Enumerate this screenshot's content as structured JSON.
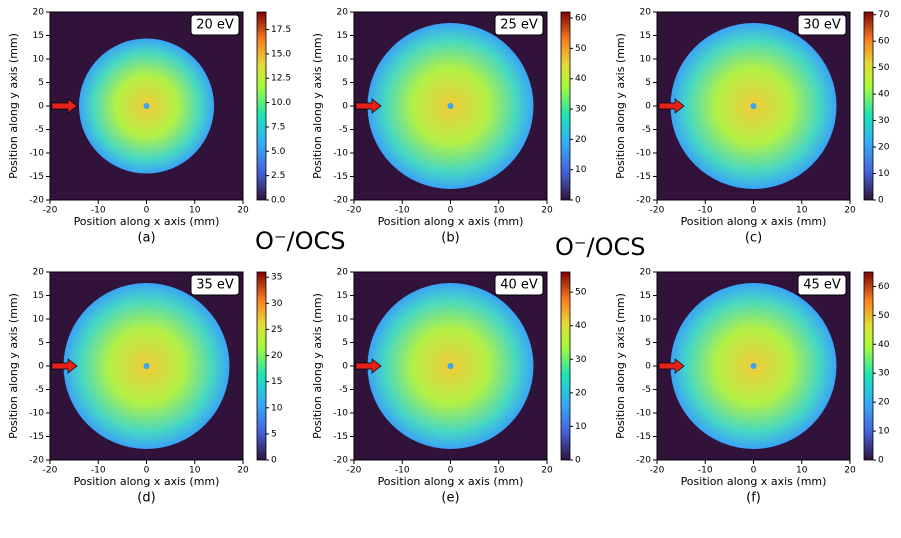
{
  "chart_data": [
    {
      "type": "heatmap",
      "annotation": "20 eV",
      "caption": "(a)",
      "xlabel": "Position along x axis (mm)",
      "ylabel": "Position along y axis (mm)",
      "xlim": [
        -20,
        20
      ],
      "ylim": [
        -20,
        20
      ],
      "xticks": [
        -20,
        -10,
        0,
        10,
        20
      ],
      "yticks": [
        -20,
        -15,
        -10,
        -5,
        0,
        5,
        10,
        15,
        20
      ],
      "clim": [
        0,
        19.3
      ],
      "cticks": [
        {
          "value": 0,
          "label": "0.0"
        },
        2.5,
        {
          "value": 5,
          "label": "5.0"
        },
        7.5,
        {
          "value": 10,
          "label": "10.0"
        },
        12.5,
        {
          "value": 15,
          "label": "15.0"
        },
        17.5
      ]
    },
    {
      "type": "heatmap",
      "annotation": "25 eV",
      "caption": "(b)",
      "xlabel": "Position along x axis (mm)",
      "ylabel": "Position along y axis (mm)",
      "xlim": [
        -20,
        20
      ],
      "ylim": [
        -20,
        20
      ],
      "xticks": [
        -20,
        -10,
        0,
        10,
        20
      ],
      "yticks": [
        -20,
        -15,
        -10,
        -5,
        0,
        5,
        10,
        15,
        20
      ],
      "clim": [
        0,
        62
      ],
      "cticks": [
        0,
        10,
        20,
        30,
        40,
        50,
        60
      ]
    },
    {
      "type": "heatmap",
      "annotation": "30 eV",
      "caption": "(c)",
      "xlabel": "Position along x axis (mm)",
      "ylabel": "Position along y axis (mm)",
      "xlim": [
        -20,
        20
      ],
      "ylim": [
        -20,
        20
      ],
      "xticks": [
        -20,
        -10,
        0,
        10,
        20
      ],
      "yticks": [
        -20,
        -15,
        -10,
        -5,
        0,
        5,
        10,
        15,
        20
      ],
      "clim": [
        0,
        71
      ],
      "cticks": [
        0,
        10,
        20,
        30,
        40,
        50,
        60,
        70
      ]
    },
    {
      "type": "heatmap",
      "annotation": "35 eV",
      "caption": "(d)",
      "xlabel": "Position along x axis (mm)",
      "ylabel": "Position along y axis (mm)",
      "xlim": [
        -20,
        20
      ],
      "ylim": [
        -20,
        20
      ],
      "xticks": [
        -20,
        -10,
        0,
        10,
        20
      ],
      "yticks": [
        -20,
        -15,
        -10,
        -5,
        0,
        5,
        10,
        15,
        20
      ],
      "clim": [
        0,
        36
      ],
      "cticks": [
        0,
        5,
        10,
        15,
        20,
        25,
        30,
        35
      ]
    },
    {
      "type": "heatmap",
      "annotation": "40 eV",
      "caption": "(e)",
      "xlabel": "Position along x axis (mm)",
      "ylabel": "Position along y axis (mm)",
      "xlim": [
        -20,
        20
      ],
      "ylim": [
        -20,
        20
      ],
      "xticks": [
        -20,
        -10,
        0,
        10,
        20
      ],
      "yticks": [
        -20,
        -15,
        -10,
        -5,
        0,
        5,
        10,
        15,
        20
      ],
      "clim": [
        0,
        56
      ],
      "cticks": [
        0,
        10,
        20,
        30,
        40,
        50
      ]
    },
    {
      "type": "heatmap",
      "annotation": "45 eV",
      "caption": "(f)",
      "xlabel": "Position along x axis (mm)",
      "ylabel": "Position along y axis (mm)",
      "xlim": [
        -20,
        20
      ],
      "ylim": [
        -20,
        20
      ],
      "xticks": [
        -20,
        -10,
        0,
        10,
        20
      ],
      "yticks": [
        -20,
        -15,
        -10,
        -5,
        0,
        5,
        10,
        15,
        20
      ],
      "clim": [
        0,
        65
      ],
      "cticks": [
        0,
        10,
        20,
        30,
        40,
        50,
        60
      ]
    }
  ],
  "overlay_labels": [
    "O⁻/OCS",
    "O⁻/OCS"
  ]
}
